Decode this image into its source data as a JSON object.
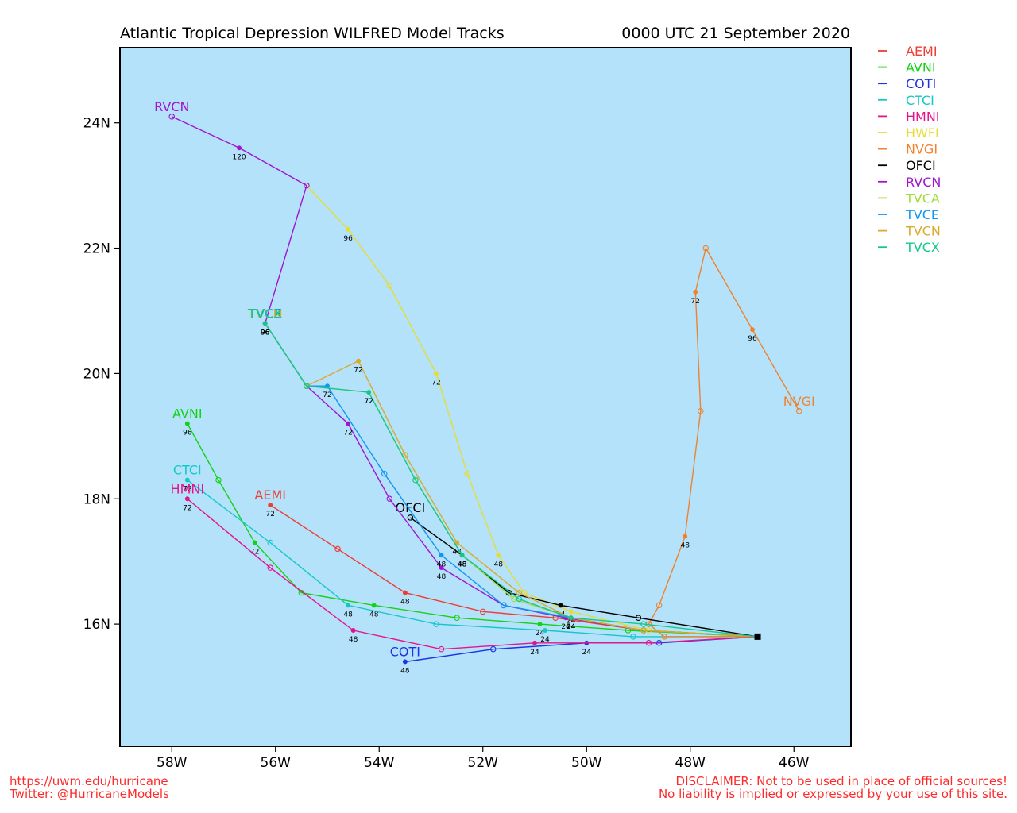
{
  "header": {
    "title": "Atlantic Tropical Depression WILFRED Model Tracks",
    "date": "0000 UTC 21 September 2020"
  },
  "footer": {
    "url": "https://uwm.edu/hurricane",
    "twitter": "Twitter: @HurricaneModels",
    "disclaimer_1": "DISCLAIMER: Not to be used in place of official sources!",
    "disclaimer_2": "No liability is implied or expressed by your use of this site."
  },
  "colors": {
    "ocean": "#b3e2fa",
    "footer_text": "#ff2a2a"
  },
  "chart_data": {
    "type": "line",
    "title": "Atlantic Tropical Depression WILFRED Model Tracks",
    "xlabel": "",
    "ylabel": "",
    "x_unit": "degrees longitude (negative = West)",
    "y_unit": "degrees latitude (North)",
    "xlim": [
      -59.0,
      -44.9
    ],
    "ylim": [
      14.05,
      25.2
    ],
    "x_ticks": [
      -58,
      -56,
      -54,
      -52,
      -50,
      -48,
      -46
    ],
    "x_tick_labels": [
      "58W",
      "56W",
      "54W",
      "52W",
      "50W",
      "48W",
      "46W"
    ],
    "y_ticks": [
      16,
      18,
      20,
      22,
      24
    ],
    "y_tick_labels": [
      "16N",
      "18N",
      "20N",
      "22N",
      "24N"
    ],
    "grid": false,
    "legend_position": "right, outside plot",
    "initial_position": [
      -46.7,
      15.8
    ],
    "series": [
      {
        "name": "AEMI",
        "color": "#f03c32",
        "points": [
          [
            -46.7,
            15.8
          ],
          [
            -48.9,
            15.9
          ],
          [
            -50.6,
            16.1
          ],
          [
            -52.0,
            16.2
          ],
          [
            -53.5,
            16.5
          ],
          [
            -54.8,
            17.2
          ],
          [
            -56.1,
            17.9
          ]
        ],
        "hour_labels": [
          [
            -53.5,
            16.5,
            "48"
          ],
          [
            -56.1,
            17.9,
            "72"
          ]
        ],
        "end_label": "AEMI",
        "end_label_pos": [
          -56.1,
          17.9
        ]
      },
      {
        "name": "AVNI",
        "color": "#14d214",
        "points": [
          [
            -46.7,
            15.8
          ],
          [
            -49.2,
            15.9
          ],
          [
            -50.9,
            16.0
          ],
          [
            -52.5,
            16.1
          ],
          [
            -54.1,
            16.3
          ],
          [
            -55.5,
            16.5
          ],
          [
            -56.4,
            17.3
          ],
          [
            -57.1,
            18.3
          ],
          [
            -57.7,
            19.2
          ]
        ],
        "hour_labels": [
          [
            -50.9,
            16.0,
            "24"
          ],
          [
            -54.1,
            16.3,
            "48"
          ],
          [
            -56.4,
            17.3,
            "72"
          ],
          [
            -57.7,
            19.2,
            "96"
          ]
        ],
        "end_label": "AVNI",
        "end_label_pos": [
          -57.7,
          19.2
        ]
      },
      {
        "name": "COTI",
        "color": "#1e32e6",
        "points": [
          [
            -46.7,
            15.8
          ],
          [
            -48.6,
            15.7
          ],
          [
            -50.0,
            15.7
          ],
          [
            -51.8,
            15.6
          ],
          [
            -53.5,
            15.4
          ]
        ],
        "hour_labels": [
          [
            -50.0,
            15.7,
            "24"
          ],
          [
            -53.5,
            15.4,
            "48"
          ]
        ],
        "end_label": "COTI",
        "end_label_pos": [
          -53.5,
          15.4
        ]
      },
      {
        "name": "CTCI",
        "color": "#14c8c8",
        "points": [
          [
            -46.7,
            15.8
          ],
          [
            -49.1,
            15.8
          ],
          [
            -50.8,
            15.9
          ],
          [
            -52.9,
            16.0
          ],
          [
            -54.6,
            16.3
          ],
          [
            -56.1,
            17.3
          ],
          [
            -57.7,
            18.3
          ]
        ],
        "hour_labels": [
          [
            -50.8,
            15.9,
            "24"
          ],
          [
            -54.6,
            16.3,
            "48"
          ],
          [
            -57.7,
            18.3,
            "72"
          ]
        ],
        "end_label": "CTCI",
        "end_label_pos": [
          -57.7,
          18.3
        ]
      },
      {
        "name": "HMNI",
        "color": "#e6148c",
        "points": [
          [
            -46.7,
            15.8
          ],
          [
            -48.8,
            15.7
          ],
          [
            -51.0,
            15.7
          ],
          [
            -52.8,
            15.6
          ],
          [
            -54.5,
            15.9
          ],
          [
            -56.1,
            16.9
          ],
          [
            -57.7,
            18.0
          ]
        ],
        "hour_labels": [
          [
            -51.0,
            15.7,
            "24"
          ],
          [
            -54.5,
            15.9,
            "48"
          ],
          [
            -57.7,
            18.0,
            "72"
          ]
        ],
        "end_label": "HMNI",
        "end_label_pos": [
          -57.7,
          18.0
        ]
      },
      {
        "name": "HWFI",
        "color": "#e6dc32",
        "points": [
          [
            -46.7,
            15.8
          ],
          [
            -48.8,
            15.9
          ],
          [
            -50.3,
            16.2
          ],
          [
            -51.2,
            16.5
          ],
          [
            -51.7,
            17.1
          ],
          [
            -52.3,
            18.4
          ],
          [
            -52.9,
            20.0
          ],
          [
            -53.8,
            21.4
          ],
          [
            -54.6,
            22.3
          ],
          [
            -55.4,
            23.0
          ]
        ],
        "hour_labels": [
          [
            -50.3,
            16.2,
            "24"
          ],
          [
            -51.7,
            17.1,
            "48"
          ],
          [
            -52.9,
            20.0,
            "72"
          ],
          [
            -54.6,
            22.3,
            "96"
          ]
        ],
        "end_label": "",
        "end_label_pos": [
          -55.4,
          23.0
        ]
      },
      {
        "name": "NVGI",
        "color": "#f0822d",
        "points": [
          [
            -46.7,
            15.8
          ],
          [
            -48.5,
            15.8
          ],
          [
            -48.8,
            16.0
          ],
          [
            -48.6,
            16.3
          ],
          [
            -48.1,
            17.4
          ],
          [
            -47.8,
            19.4
          ],
          [
            -47.9,
            21.3
          ],
          [
            -47.7,
            22.0
          ],
          [
            -46.8,
            20.7
          ],
          [
            -45.9,
            19.4
          ]
        ],
        "hour_labels": [
          [
            -48.1,
            17.4,
            "48"
          ],
          [
            -47.9,
            21.3,
            "72"
          ],
          [
            -46.8,
            20.7,
            "96"
          ]
        ],
        "end_label": "NVGI",
        "end_label_pos": [
          -45.9,
          19.4
        ]
      },
      {
        "name": "OFCI",
        "color": "#000000",
        "points": [
          [
            -46.7,
            15.8
          ],
          [
            -49.0,
            16.1
          ],
          [
            -50.5,
            16.3
          ],
          [
            -51.5,
            16.5
          ],
          [
            -52.4,
            17.1
          ],
          [
            -53.4,
            17.7
          ]
        ],
        "hour_labels": [
          [
            -50.5,
            16.3,
            "24"
          ],
          [
            -52.4,
            17.1,
            "48"
          ]
        ],
        "end_label": "OFCI",
        "end_label_pos": [
          -53.4,
          17.7
        ]
      },
      {
        "name": "RVCN",
        "color": "#a014d2",
        "points": [
          [
            -46.7,
            15.8
          ],
          [
            -48.9,
            15.9
          ],
          [
            -50.4,
            16.1
          ],
          [
            -51.6,
            16.3
          ],
          [
            -52.8,
            16.9
          ],
          [
            -53.8,
            18.0
          ],
          [
            -54.6,
            19.2
          ],
          [
            -55.4,
            19.8
          ],
          [
            -56.2,
            20.8
          ],
          [
            -55.4,
            23.0
          ],
          [
            -56.7,
            23.6
          ],
          [
            -58.0,
            24.1
          ]
        ],
        "hour_labels": [
          [
            -50.4,
            16.1,
            "24"
          ],
          [
            -52.8,
            16.9,
            "48"
          ],
          [
            -54.6,
            19.2,
            "72"
          ],
          [
            -56.2,
            20.8,
            "96"
          ],
          [
            -56.7,
            23.6,
            "120"
          ]
        ],
        "end_label": "RVCN",
        "end_label_pos": [
          -58.0,
          24.1
        ]
      },
      {
        "name": "TVCA",
        "color": "#a0dc3c",
        "points": [
          [
            -46.7,
            15.8
          ],
          [
            -48.9,
            15.9
          ],
          [
            -50.3,
            16.1
          ],
          [
            -51.4,
            16.4
          ],
          [
            -52.4,
            17.1
          ],
          [
            -53.3,
            18.3
          ],
          [
            -54.2,
            19.7
          ],
          [
            -55.4,
            19.8
          ],
          [
            -56.2,
            20.8
          ]
        ],
        "hour_labels": [
          [
            -50.3,
            16.1,
            "24"
          ],
          [
            -52.4,
            17.1,
            "48"
          ],
          [
            -54.2,
            19.7,
            "72"
          ],
          [
            -56.2,
            20.8,
            "96"
          ]
        ],
        "end_label": "TVCA",
        "end_label_pos": [
          -56.2,
          20.8
        ]
      },
      {
        "name": "TVCE",
        "color": "#1496f0",
        "points": [
          [
            -46.7,
            15.8
          ],
          [
            -48.9,
            15.9
          ],
          [
            -50.3,
            16.1
          ],
          [
            -51.6,
            16.3
          ],
          [
            -52.8,
            17.1
          ],
          [
            -53.9,
            18.4
          ],
          [
            -55.0,
            19.8
          ],
          [
            -55.4,
            19.8
          ],
          [
            -56.2,
            20.8
          ]
        ],
        "hour_labels": [
          [
            -50.3,
            16.1,
            "24"
          ],
          [
            -52.8,
            17.1,
            "48"
          ],
          [
            -55.0,
            19.8,
            "72"
          ],
          [
            -56.2,
            20.8,
            "96"
          ]
        ],
        "end_label": "TVCE",
        "end_label_pos": [
          -56.2,
          20.8
        ]
      },
      {
        "name": "TVCN",
        "color": "#dcaa28",
        "points": [
          [
            -46.7,
            15.8
          ],
          [
            -48.9,
            15.9
          ],
          [
            -50.3,
            16.1
          ],
          [
            -51.3,
            16.5
          ],
          [
            -52.5,
            17.3
          ],
          [
            -53.5,
            18.7
          ],
          [
            -54.4,
            20.2
          ],
          [
            -55.4,
            19.8
          ],
          [
            -56.2,
            20.8
          ]
        ],
        "hour_labels": [
          [
            -50.3,
            16.1,
            "24"
          ],
          [
            -52.5,
            17.3,
            "48"
          ],
          [
            -54.4,
            20.2,
            "72"
          ],
          [
            -56.2,
            20.8,
            "96"
          ]
        ],
        "end_label": "TVCN",
        "end_label_pos": [
          -56.2,
          20.8
        ]
      },
      {
        "name": "TVCX",
        "color": "#14c88c",
        "points": [
          [
            -46.7,
            15.8
          ],
          [
            -48.9,
            16.0
          ],
          [
            -50.3,
            16.1
          ],
          [
            -51.3,
            16.4
          ],
          [
            -52.4,
            17.1
          ],
          [
            -53.3,
            18.3
          ],
          [
            -54.2,
            19.7
          ],
          [
            -55.4,
            19.8
          ],
          [
            -56.2,
            20.8
          ]
        ],
        "hour_labels": [
          [
            -50.3,
            16.1,
            "24"
          ],
          [
            -52.4,
            17.1,
            "48"
          ],
          [
            -54.2,
            19.7,
            "72"
          ],
          [
            -56.2,
            20.8,
            "96"
          ]
        ],
        "end_label": "TVCX",
        "end_label_pos": [
          -56.2,
          20.8
        ]
      }
    ]
  }
}
